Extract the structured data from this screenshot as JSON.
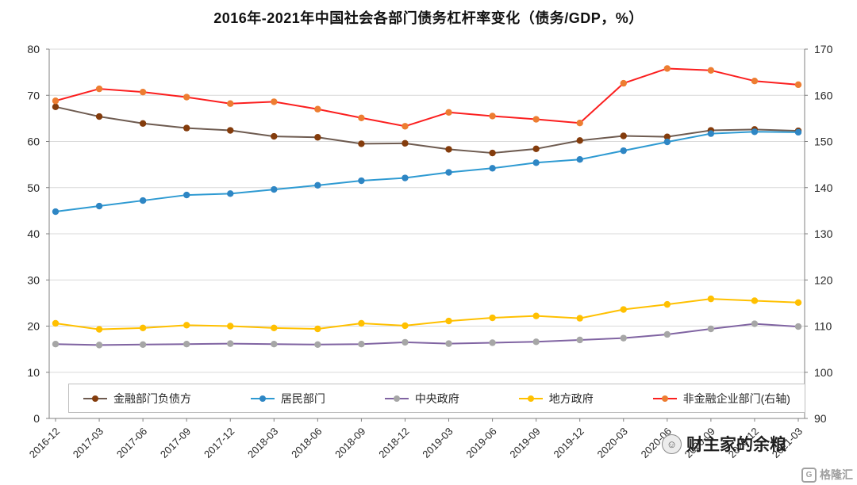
{
  "chart_data": {
    "type": "line",
    "title": "2016年-2021年中国社会各部门债务杠杆率变化（债务/GDP，%）",
    "xlabel": "",
    "ylabel": "",
    "grid": true,
    "legend_position": "bottom",
    "categories": [
      "2016-12",
      "2017-03",
      "2017-06",
      "2017-09",
      "2017-12",
      "2018-03",
      "2018-06",
      "2018-09",
      "2018-12",
      "2019-03",
      "2019-06",
      "2019-09",
      "2019-12",
      "2020-03",
      "2020-06",
      "2020-09",
      "2020-12",
      "2021-03"
    ],
    "left_axis": {
      "min": 0,
      "max": 80,
      "ticks": [
        0,
        10,
        20,
        30,
        40,
        50,
        60,
        70,
        80
      ]
    },
    "right_axis": {
      "min": 90,
      "max": 170,
      "ticks": [
        90,
        100,
        110,
        120,
        130,
        140,
        150,
        160,
        170
      ]
    },
    "series": [
      {
        "name": "金融部门负债方",
        "axis": "left",
        "line_color": "#6e5b50",
        "marker_color": "#843c0c",
        "values": [
          67.5,
          65.4,
          63.9,
          62.9,
          62.4,
          61.1,
          60.9,
          59.5,
          59.6,
          58.3,
          57.5,
          58.4,
          60.2,
          61.2,
          61.0,
          62.4,
          62.6,
          62.3
        ]
      },
      {
        "name": "居民部门",
        "axis": "left",
        "line_color": "#2e9ad2",
        "marker_color": "#2e86c4",
        "values": [
          44.8,
          46.0,
          47.2,
          48.4,
          48.7,
          49.6,
          50.5,
          51.5,
          52.1,
          53.3,
          54.2,
          55.4,
          56.1,
          58.0,
          59.9,
          61.7,
          62.1,
          62.0
        ]
      },
      {
        "name": "中央政府",
        "axis": "left",
        "line_color": "#8064a2",
        "marker_color": "#a6a6a6",
        "values": [
          16.1,
          15.9,
          16.0,
          16.1,
          16.2,
          16.1,
          16.0,
          16.1,
          16.5,
          16.2,
          16.4,
          16.6,
          17.0,
          17.4,
          18.2,
          19.4,
          20.5,
          19.9
        ]
      },
      {
        "name": "地方政府",
        "axis": "left",
        "line_color": "#ffc000",
        "marker_color": "#ffc000",
        "values": [
          20.6,
          19.3,
          19.6,
          20.2,
          20.0,
          19.6,
          19.4,
          20.6,
          20.1,
          21.1,
          21.8,
          22.2,
          21.7,
          23.6,
          24.7,
          25.9,
          25.5,
          25.1
        ]
      },
      {
        "name": "非金融企业部门(右轴)",
        "axis": "right",
        "line_color": "#fb1f1f",
        "marker_color": "#ed7d31",
        "values": [
          158.8,
          161.4,
          160.7,
          159.6,
          158.2,
          158.6,
          157.0,
          155.1,
          153.3,
          156.3,
          155.5,
          154.8,
          154.0,
          162.6,
          165.8,
          165.4,
          163.1,
          162.3
        ]
      }
    ]
  },
  "watermarks": {
    "author": "财主家的余粮",
    "platform": "格隆汇",
    "platform_icon": "G"
  }
}
